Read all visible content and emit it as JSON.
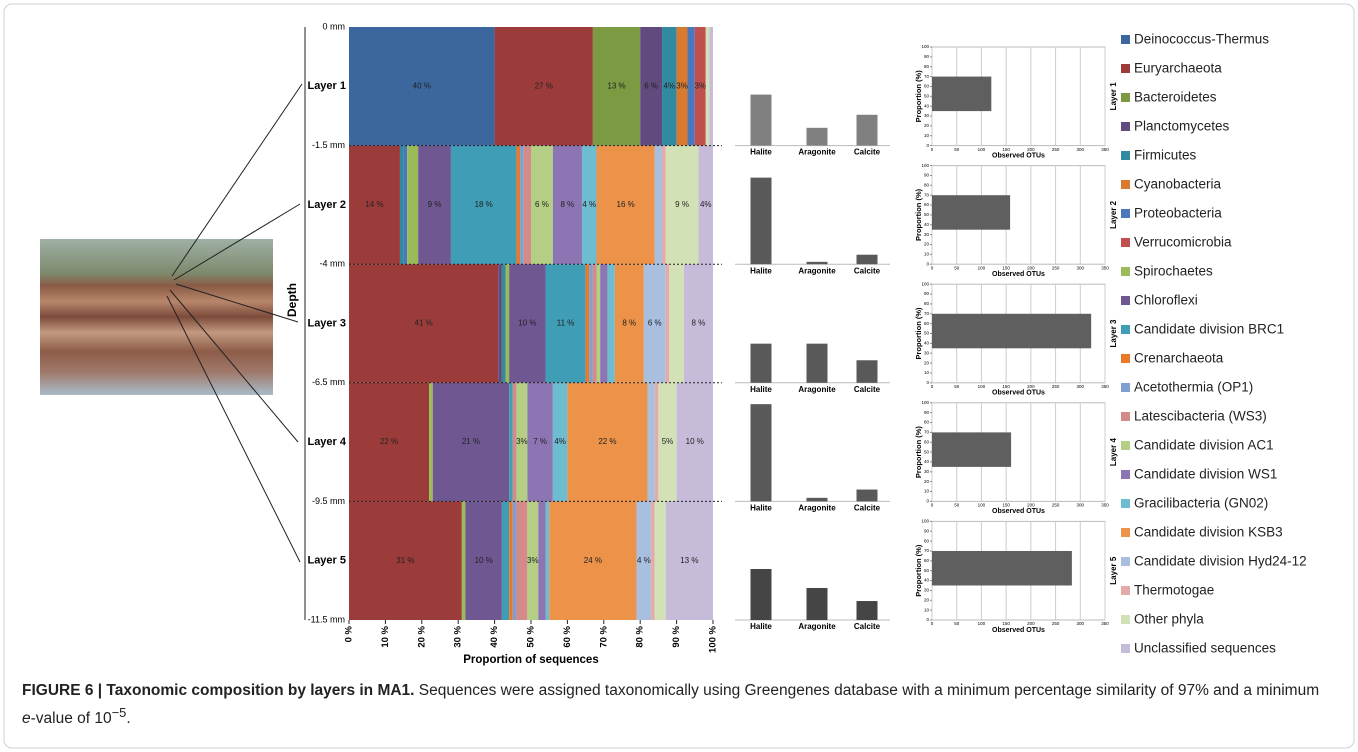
{
  "chart_data": [
    {
      "type": "bar",
      "orientation": "horizontal",
      "stacked": true,
      "x_label": "Proportion of sequences",
      "y_label": "Depth",
      "categories": [
        "Layer 1",
        "Layer 2",
        "Layer 3",
        "Layer 4",
        "Layer 5"
      ],
      "depth_labels": [
        "0 mm",
        "-1.5 mm",
        "-4 mm",
        "-6.5 mm",
        "-9.5 mm",
        "-11.5 mm"
      ],
      "xlim": [
        0,
        100
      ],
      "xticks": [
        {
          "value": 0,
          "label": "0 %"
        },
        {
          "value": 10,
          "label": "10 %"
        },
        {
          "value": 20,
          "label": "20 %"
        },
        {
          "value": 30,
          "label": "30 %"
        },
        {
          "value": 40,
          "label": "40 %"
        },
        {
          "value": 50,
          "label": "50 %"
        },
        {
          "value": 60,
          "label": "60 %"
        },
        {
          "value": 70,
          "label": "70 %"
        },
        {
          "value": 80,
          "label": "80 %"
        },
        {
          "value": 90,
          "label": "90 %"
        },
        {
          "value": 100,
          "label": "100 %"
        }
      ],
      "series": [
        {
          "name": "Deinococcus-Thermus",
          "color": "#3b679e",
          "values": [
            40,
            0,
            0,
            0,
            0
          ],
          "value_labels": [
            "40 %",
            null,
            null,
            null,
            null
          ]
        },
        {
          "name": "Euryarchaeota",
          "color": "#9b3c3b",
          "values": [
            27,
            14,
            41,
            22,
            31
          ],
          "value_labels": [
            "27 %",
            "14 %",
            "41 %",
            "22 %",
            "31 %"
          ]
        },
        {
          "name": "Bacteroidetes",
          "color": "#7b9a42",
          "values": [
            13,
            0,
            0,
            0,
            0
          ],
          "value_labels": [
            "13 %",
            null,
            null,
            null,
            null
          ]
        },
        {
          "name": "Planctomycetes",
          "color": "#614b7e",
          "values": [
            6,
            0,
            1,
            0,
            0
          ],
          "value_labels": [
            "6 %",
            null,
            null,
            null,
            null
          ]
        },
        {
          "name": "Firmicutes",
          "color": "#328aa0",
          "values": [
            4,
            1,
            1,
            0,
            0
          ],
          "value_labels": [
            "4%",
            null,
            null,
            null,
            null
          ]
        },
        {
          "name": "Cyanobacteria",
          "color": "#d97a2f",
          "values": [
            3,
            0,
            0,
            0,
            0
          ],
          "value_labels": [
            "3%",
            null,
            null,
            null,
            null
          ]
        },
        {
          "name": "Proteobacteria",
          "color": "#4a78bb",
          "values": [
            2,
            1,
            0,
            0,
            0
          ],
          "value_labels": [
            null,
            null,
            null,
            null,
            null
          ]
        },
        {
          "name": "Verrucomicrobia",
          "color": "#c0504d",
          "values": [
            3,
            0,
            0,
            0,
            0
          ],
          "value_labels": [
            "3%",
            null,
            null,
            null,
            null
          ]
        },
        {
          "name": "Spirochaetes",
          "color": "#9bbb59",
          "values": [
            0,
            3,
            1,
            1,
            1
          ],
          "value_labels": [
            null,
            null,
            null,
            null,
            null
          ]
        },
        {
          "name": "Chloroflexi",
          "color": "#6f5792",
          "values": [
            0,
            9,
            10,
            21,
            10
          ],
          "value_labels": [
            null,
            "9 %",
            "10 %",
            "21 %",
            "10 %"
          ]
        },
        {
          "name": "Candidate division BRC1",
          "color": "#3f9db5",
          "values": [
            0,
            18,
            11,
            1,
            2
          ],
          "value_labels": [
            null,
            "18 %",
            "11 %",
            null,
            null
          ]
        },
        {
          "name": "Crenarchaeota",
          "color": "#e8792a",
          "values": [
            0,
            1,
            1,
            0,
            1
          ],
          "value_labels": [
            null,
            null,
            null,
            null,
            null
          ]
        },
        {
          "name": "Acetothermia (OP1)",
          "color": "#7f9fd0",
          "values": [
            0,
            1,
            1,
            0,
            1
          ],
          "value_labels": [
            null,
            null,
            null,
            null,
            null
          ]
        },
        {
          "name": "Latescibacteria (WS3)",
          "color": "#d48a89",
          "values": [
            0,
            2,
            1,
            1,
            3
          ],
          "value_labels": [
            null,
            null,
            null,
            null,
            null
          ]
        },
        {
          "name": "Candidate division AC1",
          "color": "#b4cf84",
          "values": [
            0,
            6,
            1,
            3,
            3
          ],
          "value_labels": [
            null,
            "6 %",
            null,
            "3%",
            "3%"
          ]
        },
        {
          "name": "Candidate division WS1",
          "color": "#8d74b3",
          "values": [
            0,
            8,
            2,
            7,
            2
          ],
          "value_labels": [
            null,
            "8 %",
            null,
            "7 %",
            null
          ]
        },
        {
          "name": "Gracilibacteria (GN02)",
          "color": "#6dbccf",
          "values": [
            0,
            4,
            2,
            4,
            1
          ],
          "value_labels": [
            null,
            "4 %",
            null,
            "4%",
            null
          ]
        },
        {
          "name": "Candidate division KSB3",
          "color": "#ec9249",
          "values": [
            0,
            16,
            8,
            22,
            24
          ],
          "value_labels": [
            null,
            "16 %",
            "8 %",
            "22 %",
            "24 %"
          ]
        },
        {
          "name": "Candidate division Hyd24-12",
          "color": "#a9bfe0",
          "values": [
            0,
            2,
            6,
            2,
            4
          ],
          "value_labels": [
            null,
            null,
            "6 %",
            null,
            "4 %"
          ]
        },
        {
          "name": "Thermotogae",
          "color": "#e3aaa9",
          "values": [
            0,
            1,
            1,
            1,
            1
          ],
          "value_labels": [
            null,
            null,
            null,
            null,
            null
          ]
        },
        {
          "name": "Other phyla",
          "color": "#d3e2b6",
          "values": [
            1,
            9,
            4,
            5,
            3
          ],
          "value_labels": [
            null,
            "9 %",
            null,
            "5%",
            null
          ]
        },
        {
          "name": "Unclassified sequences",
          "color": "#c6bcd9",
          "values": [
            1,
            4,
            8,
            10,
            13
          ],
          "value_labels": [
            null,
            "4%",
            "8 %",
            "10 %",
            "13 %"
          ]
        }
      ]
    },
    {
      "type": "bar",
      "categories": [
        "Halite",
        "Aragonite",
        "Calcite"
      ],
      "ylim": [
        0,
        100
      ],
      "panels": [
        {
          "values": [
            43,
            15,
            26
          ],
          "color": "#808080"
        },
        {
          "values": [
            73,
            2,
            8
          ],
          "color": "#595959"
        },
        {
          "values": [
            33,
            33,
            19
          ],
          "color": "#595959"
        },
        {
          "values": [
            82,
            3,
            10
          ],
          "color": "#595959"
        },
        {
          "values": [
            43,
            27,
            16
          ],
          "color": "#454545"
        }
      ]
    },
    {
      "type": "hbar",
      "x_label": "Observed OTUs",
      "y_label": "Proportion (%)",
      "color": "#5f5f5f",
      "xlim": [
        0,
        350
      ],
      "xticks": [
        0,
        50,
        100,
        150,
        200,
        250,
        300,
        350
      ],
      "ylim": [
        0,
        100
      ],
      "yticks": [
        0,
        10,
        20,
        30,
        40,
        50,
        60,
        70,
        80,
        90,
        100
      ],
      "grid": true,
      "panels": [
        {
          "title": "Layer 1",
          "value": 120
        },
        {
          "title": "Layer 2",
          "value": 158
        },
        {
          "title": "Layer 3",
          "value": 322
        },
        {
          "title": "Layer 4",
          "value": 160
        },
        {
          "title": "Layer 5",
          "value": 283
        }
      ]
    }
  ],
  "caption": {
    "title": "FIGURE 6 | Taxonomic composition by layers in MA1.",
    "text_1": " Sequences were assigned taxonomically using Greengenes database with a minimum percentage similarity of 97% and a minimum ",
    "italic": "e",
    "text_2": "-value of 10",
    "superscript": "−5",
    "text_3": "."
  }
}
